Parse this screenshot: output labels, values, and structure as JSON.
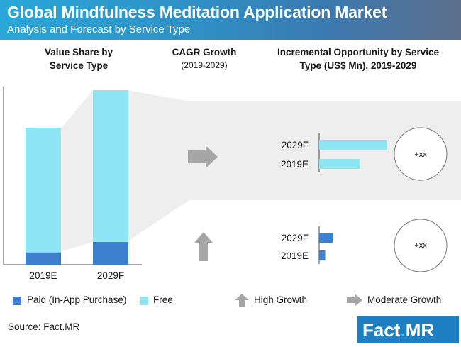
{
  "header": {
    "title": "Global Mindfulness Meditation Application Market",
    "subtitle": "Analysis and Forecast by Service Type"
  },
  "panels": {
    "value_share": "Value Share by Service Type",
    "cagr_title": "CAGR Growth",
    "cagr_period": "(2019-2029)",
    "incremental": "Incremental Opportunity by Service Type (US$ Mn), 2019-2029"
  },
  "circles": [
    "+xx",
    "+xx"
  ],
  "legend": {
    "paid": "Paid (In-App Purchase)",
    "free": "Free",
    "high_growth": "High Growth",
    "moderate_growth": "Moderate Growth"
  },
  "source": "Source: Fact.MR",
  "logo": {
    "main": "Fact",
    "dot": ".",
    "suffix": "MR"
  },
  "colors": {
    "paid": "#3b7fce",
    "free": "#8ee6f5",
    "band": "#eeeeee",
    "arrow": "#a6a6a6"
  },
  "chart_data": [
    {
      "type": "bar",
      "title": "Value Share by Service Type",
      "stacked": true,
      "categories": [
        "2019E",
        "2029F"
      ],
      "series": [
        {
          "name": "Paid (In-App Purchase)",
          "values": [
            9,
            13
          ]
        },
        {
          "name": "Free",
          "values": [
            91,
            87
          ]
        }
      ]
    },
    {
      "type": "bar",
      "orientation": "horizontal",
      "segment": "Free",
      "categories": [
        "2029F",
        "2019E"
      ],
      "values": [
        100,
        61
      ],
      "growth": "Moderate Growth",
      "incremental_label": "+xx"
    },
    {
      "type": "bar",
      "orientation": "horizontal",
      "segment": "Paid (In-App Purchase)",
      "categories": [
        "2029F",
        "2019E"
      ],
      "values": [
        20,
        9
      ],
      "growth": "High Growth",
      "incremental_label": "+xx"
    }
  ]
}
